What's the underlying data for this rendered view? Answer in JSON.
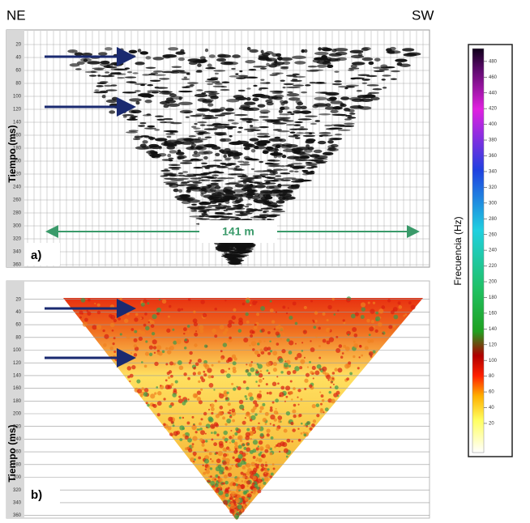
{
  "header": {
    "left": "NE",
    "right": "SW"
  },
  "panel_a": {
    "label": "a)",
    "y_axis_title": "Tiempo (ms)",
    "distance_label": "141 m",
    "yticks": [
      20,
      40,
      60,
      80,
      100,
      120,
      140,
      160,
      180,
      200,
      220,
      240,
      260,
      280,
      300,
      320,
      340,
      360
    ]
  },
  "panel_b": {
    "label": "b)",
    "y_axis_title": "Tiempo (ms)",
    "yticks": [
      20,
      40,
      60,
      80,
      100,
      120,
      140,
      160,
      180,
      200,
      220,
      240,
      260,
      280,
      300,
      320,
      340,
      360
    ]
  },
  "colorbar": {
    "title": "Frecuencia (Hz)",
    "ticks": [
      20,
      40,
      60,
      80,
      100,
      120,
      140,
      160,
      180,
      200,
      220,
      240,
      260,
      280,
      300,
      320,
      340,
      360,
      380,
      400,
      420,
      440,
      460,
      480
    ]
  }
}
